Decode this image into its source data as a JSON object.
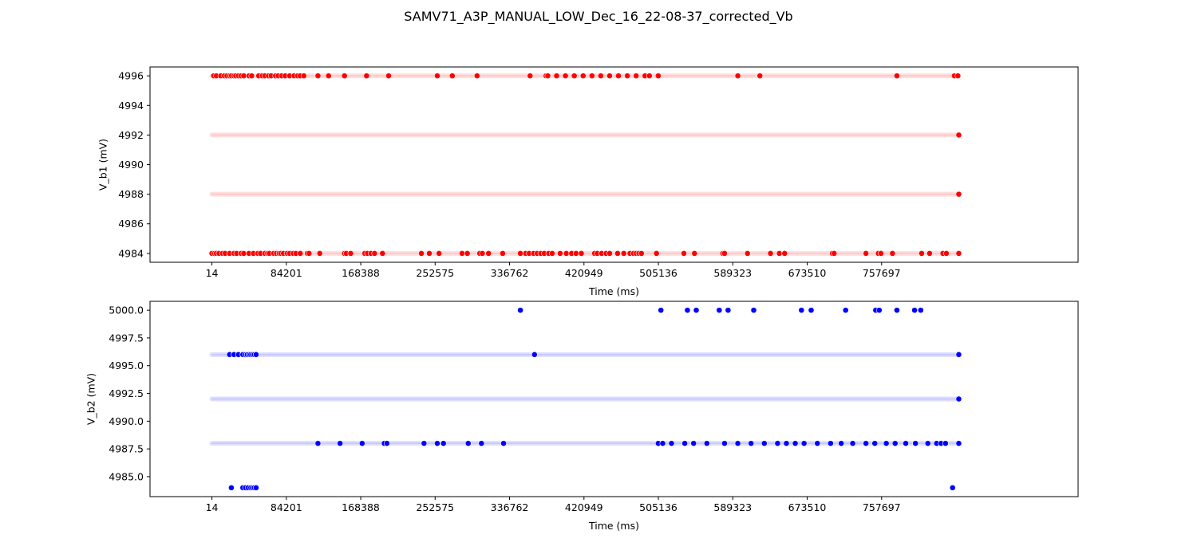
{
  "figure": {
    "title": "SAMV71_A3P_MANUAL_LOW_Dec_16_22-08-37_corrected_Vb"
  },
  "chart_data": [
    {
      "type": "scatter",
      "xlabel": "Time (ms)",
      "ylabel": "V_b1 (mV)",
      "color": "#ff0000",
      "xlim": [
        -70000,
        980000
      ],
      "ylim": [
        4983.4,
        4996.6
      ],
      "x_ticks": [
        14,
        84201,
        168388,
        252575,
        336762,
        420949,
        505136,
        589323,
        673510,
        757697
      ],
      "x_tick_labels": [
        "14",
        "84201",
        "168388",
        "252575",
        "336762",
        "420949",
        "505136",
        "589323",
        "673510",
        "757697"
      ],
      "y_ticks": [
        4984,
        4986,
        4988,
        4990,
        4992,
        4994,
        4996
      ],
      "y_tick_labels": [
        "4984",
        "4986",
        "4988",
        "4990",
        "4992",
        "4994",
        "4996"
      ],
      "x_range": [
        0,
        845000
      ],
      "dense_levels": [
        4996,
        4992,
        4988,
        4984
      ],
      "series": [
        {
          "y": 4996,
          "x": [
            2000,
            5000,
            10000,
            14000,
            17000,
            20000,
            22000,
            25000,
            27000,
            30000,
            33000,
            36000,
            42000,
            45000,
            53000,
            57000,
            60000,
            64000,
            67000,
            72000,
            75000,
            79000,
            83000,
            88000,
            93000,
            97000,
            100000,
            104000,
            120000,
            132000,
            150000,
            175000,
            200000,
            255000,
            272000,
            300000,
            360000,
            378000,
            380000,
            390000,
            400000,
            410000,
            420000,
            430000,
            440000,
            450000,
            460000,
            470000,
            480000,
            490000,
            495000,
            505000,
            595000,
            620000,
            775000,
            840000,
            844000
          ]
        },
        {
          "y": 4992,
          "x": [
            845000
          ]
        },
        {
          "y": 4988,
          "x": [
            845000
          ]
        },
        {
          "y": 4984,
          "x": [
            0,
            3000,
            5000,
            8000,
            12000,
            15000,
            20000,
            25000,
            28000,
            33000,
            36000,
            42000,
            47000,
            52000,
            55000,
            60000,
            63000,
            65000,
            70000,
            73000,
            76000,
            78000,
            81000,
            85000,
            88000,
            92000,
            95000,
            100000,
            108000,
            110000,
            122000,
            150000,
            152000,
            157000,
            173000,
            176000,
            180000,
            184000,
            193000,
            237000,
            246000,
            257000,
            283000,
            289000,
            303000,
            306000,
            313000,
            329000,
            349000,
            355000,
            359000,
            364000,
            368000,
            372000,
            376000,
            381000,
            385000,
            394000,
            401000,
            407000,
            412000,
            418000,
            433000,
            436000,
            441000,
            446000,
            450000,
            459000,
            466000,
            473000,
            477000,
            480000,
            483000,
            486000,
            503000,
            534000,
            546000,
            578000,
            580000,
            606000,
            632000,
            642000,
            648000,
            702000,
            704000,
            740000,
            754000,
            757000,
            770000,
            803000,
            812000,
            827000,
            831000,
            845000
          ]
        }
      ]
    },
    {
      "type": "scatter",
      "xlabel": "Time (ms)",
      "ylabel": "V_b2 (mV)",
      "color": "#0000ff",
      "xlim": [
        -70000,
        980000
      ],
      "ylim": [
        4983.2,
        5000.8
      ],
      "x_ticks": [
        14,
        84201,
        168388,
        252575,
        336762,
        420949,
        505136,
        589323,
        673510,
        757697
      ],
      "x_tick_labels": [
        "14",
        "84201",
        "168388",
        "252575",
        "336762",
        "420949",
        "505136",
        "589323",
        "673510",
        "757697"
      ],
      "y_ticks": [
        4985.0,
        4987.5,
        4990.0,
        4992.5,
        4995.0,
        4997.5,
        5000.0
      ],
      "y_tick_labels": [
        "4985.0",
        "4987.5",
        "4990.0",
        "4992.5",
        "4995.0",
        "4997.5",
        "5000.0"
      ],
      "x_range": [
        0,
        845000
      ],
      "dense_levels": [
        4996,
        4992,
        4988
      ],
      "series": [
        {
          "y": 5000,
          "x": [
            349000,
            508000,
            538000,
            548000,
            574000,
            584000,
            613000,
            667000,
            678000,
            717000,
            751000,
            755000,
            775000,
            795000,
            802000
          ]
        },
        {
          "y": 4996,
          "x": [
            20000,
            25000,
            30000,
            35000,
            38000,
            40000,
            42000,
            44000,
            46000,
            48000,
            50000,
            365000,
            845000
          ]
        },
        {
          "y": 4992,
          "x": [
            845000
          ]
        },
        {
          "y": 4988,
          "x": [
            120000,
            145000,
            170000,
            195000,
            198000,
            240000,
            255000,
            262000,
            290000,
            305000,
            330000,
            505000,
            510000,
            520000,
            535000,
            545000,
            560000,
            580000,
            595000,
            610000,
            625000,
            640000,
            650000,
            660000,
            670000,
            685000,
            700000,
            712000,
            725000,
            740000,
            750000,
            763000,
            773000,
            785000,
            796000,
            810000,
            820000,
            825000,
            830000,
            845000
          ]
        },
        {
          "y": 4984,
          "x": [
            22000,
            35000,
            38000,
            41000,
            44000,
            46000,
            48000,
            50000,
            838000
          ]
        }
      ]
    }
  ]
}
